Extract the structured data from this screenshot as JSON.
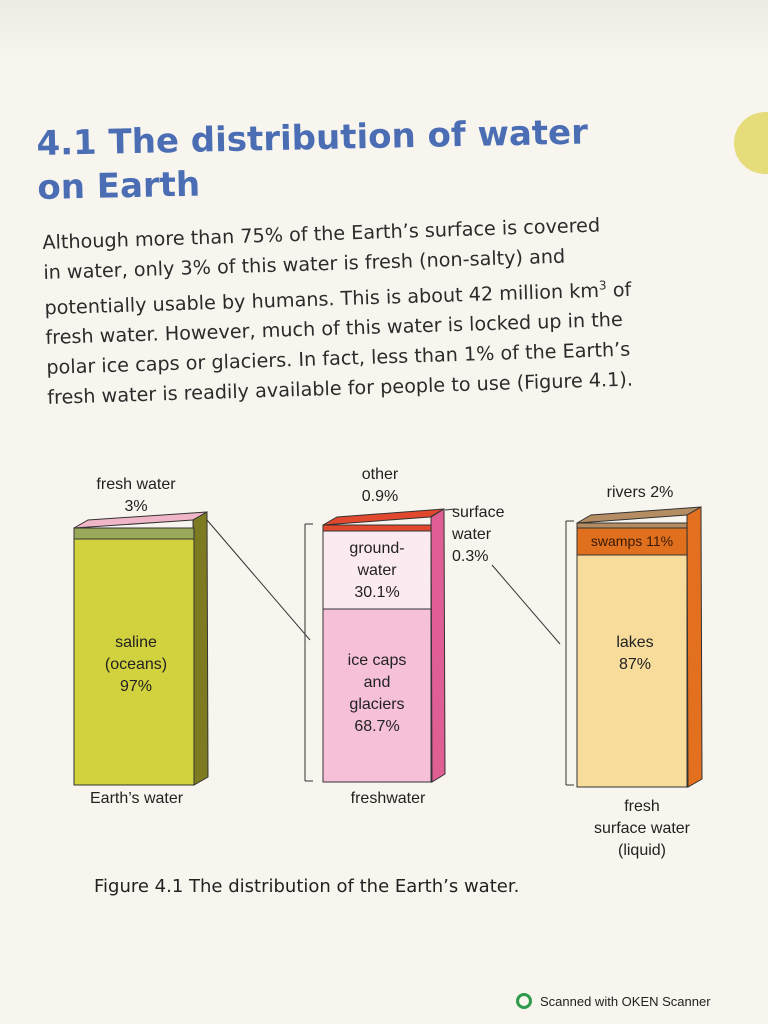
{
  "heading": {
    "number": "4.1",
    "line1": "The distribution of water",
    "line2": "on Earth"
  },
  "intro": {
    "line1": "Although more than 75% of the Earth’s surface is covered",
    "line2": "in water, only 3% of this water is fresh (non-salty) and",
    "line3_before_sup": "potentially usable by humans. This is about 42 million km",
    "line3_sup": "3",
    "line3_after_sup": " of",
    "line4": "fresh water. However, much of this water is locked up in the",
    "line5": "polar ice caps or glaciers. In fact, less than 1% of the Earth’s",
    "line6": "fresh water is readily available for people to use (Figure 4.1)."
  },
  "figure": {
    "earths_water": {
      "top_label_1": "fresh water",
      "top_label_2": "3%",
      "saline_1": "saline",
      "saline_2": "(oceans)",
      "saline_3": "97%",
      "bottom_label": "Earth’s water"
    },
    "freshwater": {
      "other_1": "other",
      "other_2": "0.9%",
      "surface_1": "surface",
      "surface_2": "water",
      "surface_3": "0.3%",
      "ground_1": "ground-",
      "ground_2": "water",
      "ground_3": "30.1%",
      "ice_1": "ice caps",
      "ice_2": "and",
      "ice_3": "glaciers",
      "ice_4": "68.7%",
      "bottom_label": "freshwater"
    },
    "surface_water": {
      "rivers": "rivers 2%",
      "swamps": "swamps 11%",
      "lakes_1": "lakes",
      "lakes_2": "87%",
      "bottom_1": "fresh",
      "bottom_2": "surface water",
      "bottom_3": "(liquid)"
    },
    "caption": "Figure 4.1 The distribution of the Earth’s water.",
    "colors": {
      "saline": "#d2d13e",
      "saline_side": "#7d7a22",
      "fresh_band": "#9aa85a",
      "fresh_top": "#f0b6c7",
      "ice": "#f6c0d9",
      "ice_side": "#df5e93",
      "groundwater": "#fbeaf0",
      "other_top": "#e2482e",
      "lakes": "#f8dc9c",
      "lakes_side": "#e3701e",
      "swamps": "#e0701e",
      "rivers_top": "#b58d62"
    }
  },
  "footer": {
    "scanner": "Scanned with OKEN Scanner"
  }
}
